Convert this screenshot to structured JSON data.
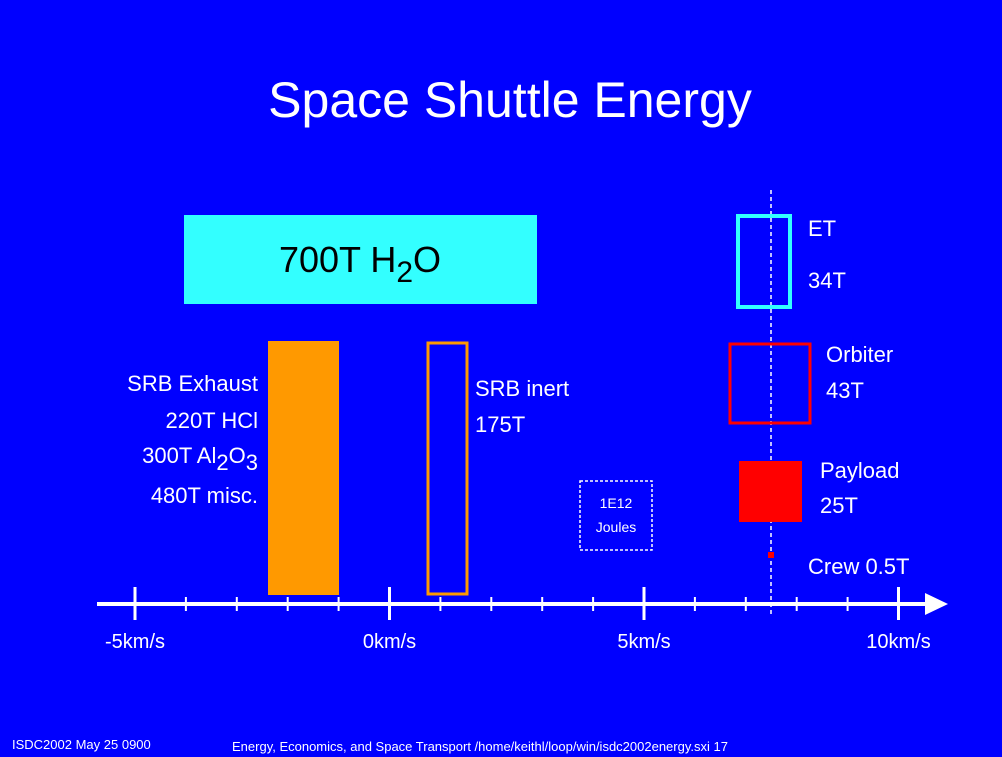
{
  "title": "Space Shuttle Energy",
  "water": {
    "parts": [
      "700T H",
      "2",
      "O"
    ]
  },
  "srb_exhaust": {
    "lines": [
      {
        "parts": [
          "SRB Exhaust"
        ]
      },
      {
        "parts": [
          "220T HCl"
        ]
      },
      {
        "parts": [
          "300T Al",
          "2",
          "O",
          "3"
        ]
      },
      {
        "parts": [
          "480T misc."
        ]
      }
    ]
  },
  "srb_inert": {
    "name": "SRB inert",
    "mass": "175T"
  },
  "energy_box": {
    "lines": [
      "1E12",
      "Joules"
    ]
  },
  "et": {
    "name": "ET",
    "mass": "34T"
  },
  "orbiter": {
    "name": "Orbiter",
    "mass": "43T"
  },
  "payload": {
    "name": "Payload",
    "mass": "25T"
  },
  "crew": {
    "label": "Crew 0.5T"
  },
  "axis": {
    "labels": [
      "-5km/s",
      "0km/s",
      "5km/s",
      "10km/s"
    ]
  },
  "footer": {
    "left": "ISDC2002  May 25  0900",
    "right": "Energy, Economics, and Space Transport   /home/keithl/loop/win/isdc2002energy.sxi   17"
  }
}
